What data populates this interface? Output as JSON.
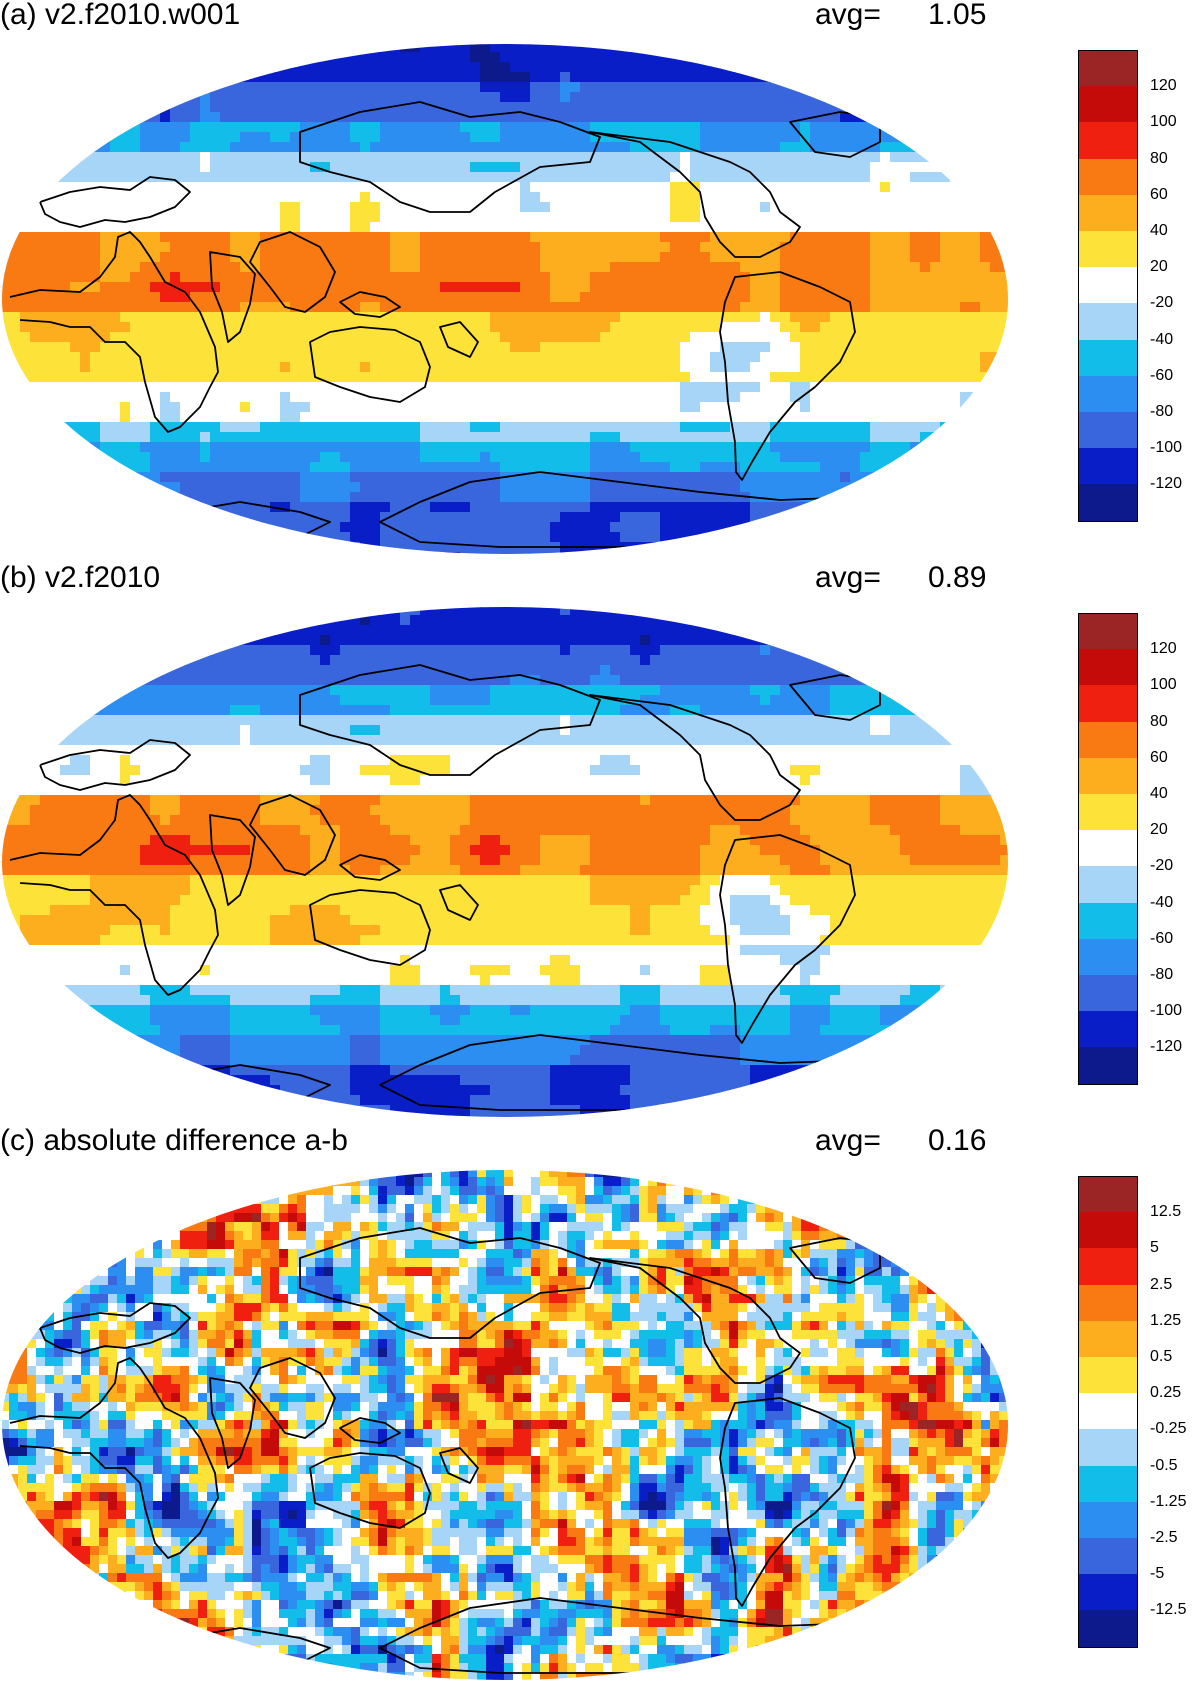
{
  "colors": {
    "palette": [
      "#0d1a8c",
      "#0a1ec8",
      "#3a66dd",
      "#2b8ef0",
      "#12bde9",
      "#a6d5f7",
      "#ffffff",
      "#fde23a",
      "#fcae1e",
      "#f97a13",
      "#f02010",
      "#c50a0a",
      "#9b2424"
    ],
    "coast": "#000000"
  },
  "panels": [
    {
      "title": "(a) v2.f2010.w001",
      "avg_label": "avg=",
      "avg_value": "1.05",
      "map_type": "field",
      "colorbar_labels": [
        "120",
        "100",
        "80",
        "60",
        "40",
        "20",
        "-20",
        "-40",
        "-60",
        "-80",
        "-100",
        "-120"
      ]
    },
    {
      "title": "(b) v2.f2010",
      "avg_label": "avg=",
      "avg_value": "0.89",
      "map_type": "field",
      "colorbar_labels": [
        "120",
        "100",
        "80",
        "60",
        "40",
        "20",
        "-20",
        "-40",
        "-60",
        "-80",
        "-100",
        "-120"
      ]
    },
    {
      "title": "(c) absolute difference a-b",
      "avg_label": "avg=",
      "avg_value": "0.16",
      "map_type": "difference",
      "colorbar_labels": [
        "12.5",
        "5",
        "2.5",
        "1.25",
        "0.5",
        "0.25",
        "-0.25",
        "-0.5",
        "-1.25",
        "-2.5",
        "-5",
        "-12.5"
      ]
    }
  ]
}
